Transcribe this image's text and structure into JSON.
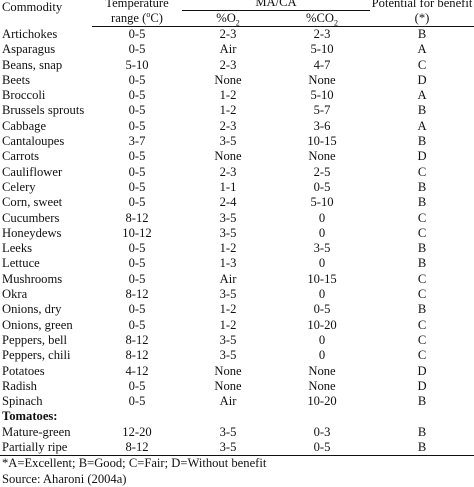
{
  "headers": {
    "commodity": "Commodity",
    "temperature_line1": "Temperature",
    "temperature_line2_prefix": "range (",
    "temperature_unit_sup": "o",
    "temperature_line2_suffix": "C)",
    "ma_ca": "MA/CA",
    "o2_prefix": "%O",
    "o2_sub": "2",
    "co2_prefix": "%CO",
    "co2_sub": "2",
    "benefit_line1": "Potential for benefit",
    "benefit_line2": "(*)"
  },
  "rows": [
    {
      "name": "Artichokes",
      "temp": "0-5",
      "o2": "2-3",
      "co2": "2-3",
      "benefit": "B"
    },
    {
      "name": "Asparagus",
      "temp": "0-5",
      "o2": "Air",
      "co2": "5-10",
      "benefit": "A"
    },
    {
      "name": "Beans, snap",
      "temp": "5-10",
      "o2": "2-3",
      "co2": "4-7",
      "benefit": "C"
    },
    {
      "name": "Beets",
      "temp": "0-5",
      "o2": "None",
      "co2": "None",
      "benefit": "D"
    },
    {
      "name": "Broccoli",
      "temp": "0-5",
      "o2": "1-2",
      "co2": "5-10",
      "benefit": "A"
    },
    {
      "name": "Brussels sprouts",
      "temp": "0-5",
      "o2": "1-2",
      "co2": "5-7",
      "benefit": "B"
    },
    {
      "name": "Cabbage",
      "temp": "0-5",
      "o2": "2-3",
      "co2": "3-6",
      "benefit": "A"
    },
    {
      "name": "Cantaloupes",
      "temp": "3-7",
      "o2": "3-5",
      "co2": "10-15",
      "benefit": "B"
    },
    {
      "name": "Carrots",
      "temp": "0-5",
      "o2": "None",
      "co2": "None",
      "benefit": "D"
    },
    {
      "name": "Cauliflower",
      "temp": "0-5",
      "o2": "2-3",
      "co2": "2-5",
      "benefit": "C"
    },
    {
      "name": "Celery",
      "temp": "0-5",
      "o2": "1-1",
      "co2": "0-5",
      "benefit": "B"
    },
    {
      "name": "Corn, sweet",
      "temp": "0-5",
      "o2": "2-4",
      "co2": "5-10",
      "benefit": "B"
    },
    {
      "name": "Cucumbers",
      "temp": "8-12",
      "o2": "3-5",
      "co2": "0",
      "benefit": "C"
    },
    {
      "name": "Honeydews",
      "temp": "10-12",
      "o2": "3-5",
      "co2": "0",
      "benefit": "C"
    },
    {
      "name": "Leeks",
      "temp": "0-5",
      "o2": "1-2",
      "co2": "3-5",
      "benefit": "B"
    },
    {
      "name": "Lettuce",
      "temp": "0-5",
      "o2": "1-3",
      "co2": "0",
      "benefit": "B"
    },
    {
      "name": "Mushrooms",
      "temp": "0-5",
      "o2": "Air",
      "co2": "10-15",
      "benefit": "C"
    },
    {
      "name": "Okra",
      "temp": "8-12",
      "o2": "3-5",
      "co2": "0",
      "benefit": "C"
    },
    {
      "name": "Onions, dry",
      "temp": "0-5",
      "o2": "1-2",
      "co2": "0-5",
      "benefit": "B"
    },
    {
      "name": "Onions, green",
      "temp": "0-5",
      "o2": "1-2",
      "co2": "10-20",
      "benefit": "C"
    },
    {
      "name": "Peppers, bell",
      "temp": "8-12",
      "o2": "3-5",
      "co2": "0",
      "benefit": "C"
    },
    {
      "name": "Peppers, chili",
      "temp": "8-12",
      "o2": "3-5",
      "co2": "0",
      "benefit": "C"
    },
    {
      "name": "Potatoes",
      "temp": "4-12",
      "o2": "None",
      "co2": "None",
      "benefit": "D"
    },
    {
      "name": "Radish",
      "temp": "0-5",
      "o2": "None",
      "co2": "None",
      "benefit": "D"
    },
    {
      "name": "Spinach",
      "temp": "0-5",
      "o2": "Air",
      "co2": "10-20",
      "benefit": "B"
    }
  ],
  "section_label": "Tomatoes:",
  "tomato_rows": [
    {
      "name": "Mature-green",
      "temp": "12-20",
      "o2": "3-5",
      "co2": "0-3",
      "benefit": "B"
    },
    {
      "name": "Partially ripe",
      "temp": "8-12",
      "o2": "3-5",
      "co2": "0-5",
      "benefit": "B"
    }
  ],
  "footnotes": {
    "legend": "*A=Excellent; B=Good; C=Fair; D=Without benefit",
    "source": "Source: Aharoni (2004a)"
  }
}
